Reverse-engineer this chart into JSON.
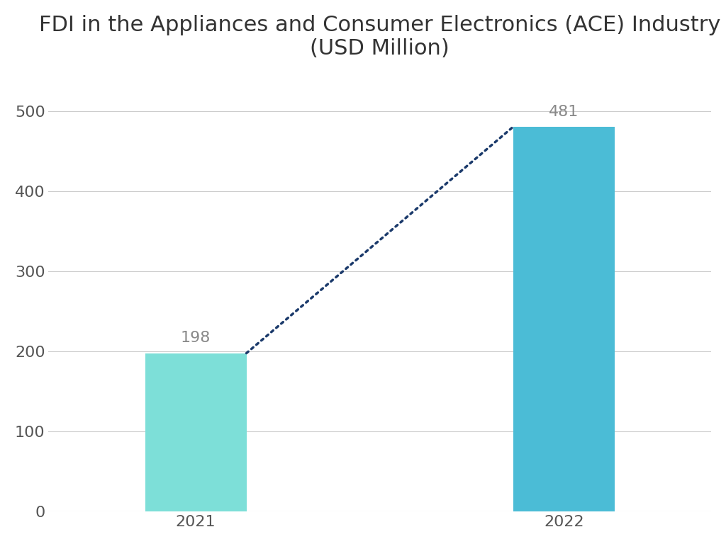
{
  "title": "FDI in the Appliances and Consumer Electronics (ACE) Industry\n(USD Million)",
  "categories": [
    "2021",
    "2022"
  ],
  "values": [
    198,
    481
  ],
  "bar_colors": [
    "#7DDFD8",
    "#4BBCD6"
  ],
  "bar_width": 0.55,
  "ylim": [
    0,
    540
  ],
  "yticks": [
    0,
    100,
    200,
    300,
    400,
    500
  ],
  "dotted_line_color": "#1B3A6B",
  "background_color": "#ffffff",
  "title_fontsize": 22,
  "tick_fontsize": 16,
  "annotation_fontsize": 16,
  "annotation_color": "#888888",
  "tick_color": "#555555",
  "x_positions": [
    1,
    3
  ],
  "xlim": [
    0.2,
    3.8
  ]
}
